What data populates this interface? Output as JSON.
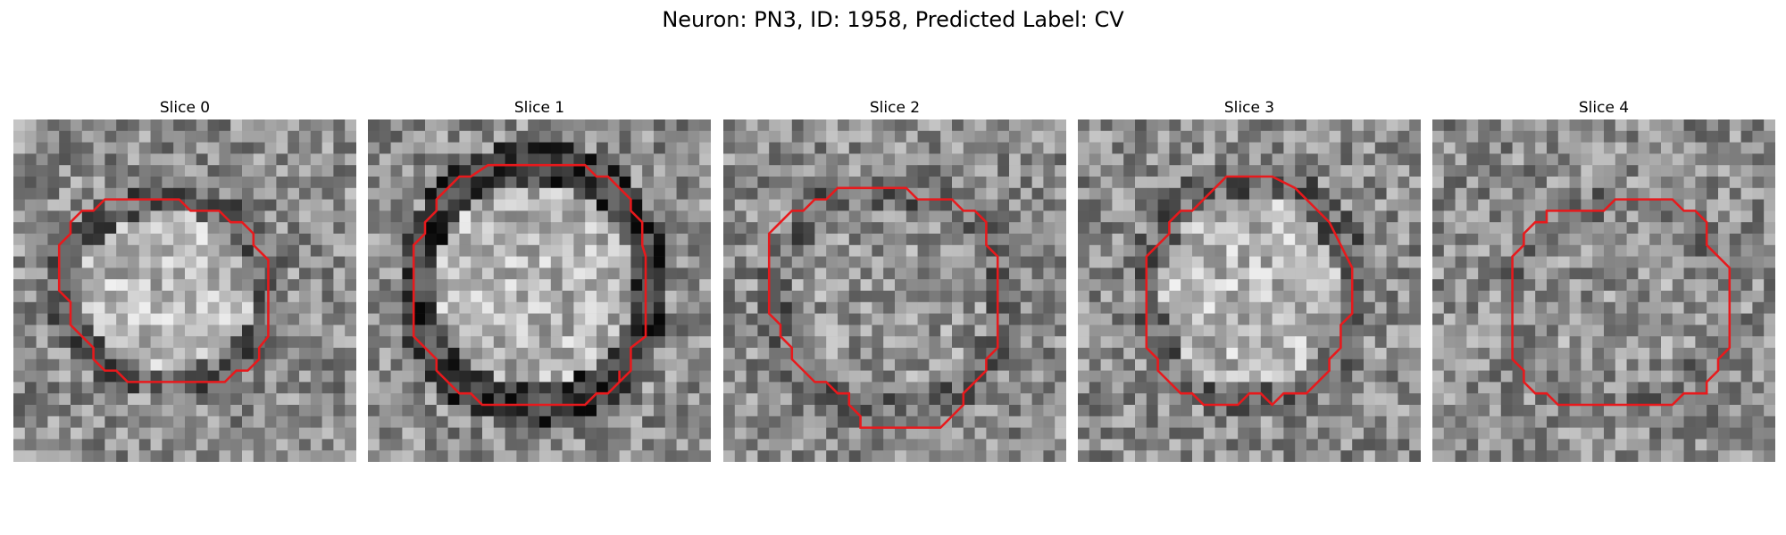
{
  "figure": {
    "suptitle": "Neuron: PN3, ID: 1958, Predicted Label: CV",
    "outline_color": "#e8191c",
    "colormap": "grayscale",
    "panels": [
      {
        "title": "Slice 0"
      },
      {
        "title": "Slice 1"
      },
      {
        "title": "Slice 2"
      },
      {
        "title": "Slice 3"
      },
      {
        "title": "Slice 4"
      }
    ]
  }
}
